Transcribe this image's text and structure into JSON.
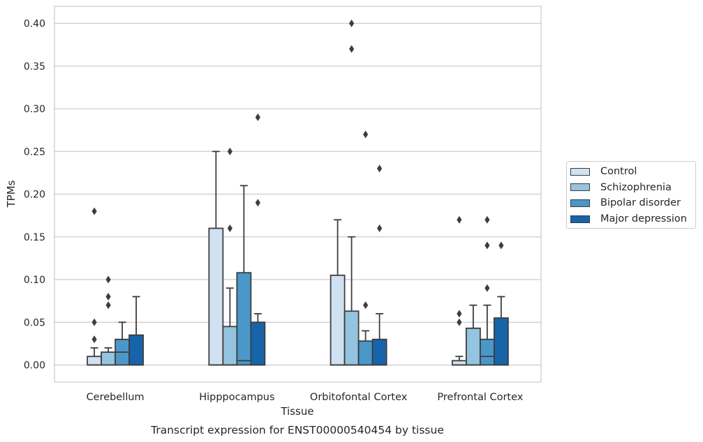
{
  "chart_data": {
    "type": "box",
    "title": "",
    "caption": "Transcript expression for ENST00000540454 by tissue",
    "xlabel": "Tissue",
    "ylabel": "TPMs",
    "ylim": [
      -0.02,
      0.42
    ],
    "yticks": [
      0.0,
      0.05,
      0.1,
      0.15,
      0.2,
      0.25,
      0.3,
      0.35,
      0.4
    ],
    "ytick_labels": [
      "0.00",
      "0.05",
      "0.10",
      "0.15",
      "0.20",
      "0.25",
      "0.30",
      "0.35",
      "0.40"
    ],
    "grid": true,
    "legend_position": "right",
    "categories": [
      "Cerebellum",
      "Hipppocampus",
      "Orbitofontal Cortex",
      "Prefrontal Cortex"
    ],
    "series": [
      {
        "name": "Control",
        "color": "#d0e1f2",
        "boxes": [
          {
            "q1": 0.0,
            "median": 0.0,
            "q3": 0.01,
            "whisker_low": 0.0,
            "whisker_high": 0.02,
            "outliers": [
              0.03,
              0.05,
              0.18
            ]
          },
          {
            "q1": 0.0,
            "median": 0.0,
            "q3": 0.16,
            "whisker_low": 0.0,
            "whisker_high": 0.25,
            "outliers": []
          },
          {
            "q1": 0.0,
            "median": 0.0,
            "q3": 0.105,
            "whisker_low": 0.0,
            "whisker_high": 0.17,
            "outliers": []
          },
          {
            "q1": 0.0,
            "median": 0.0,
            "q3": 0.005,
            "whisker_low": 0.0,
            "whisker_high": 0.01,
            "outliers": [
              0.05,
              0.06,
              0.17
            ]
          }
        ]
      },
      {
        "name": "Schizophrenia",
        "color": "#94c4df",
        "boxes": [
          {
            "q1": 0.0,
            "median": 0.0,
            "q3": 0.015,
            "whisker_low": 0.0,
            "whisker_high": 0.02,
            "outliers": [
              0.07,
              0.08,
              0.1
            ]
          },
          {
            "q1": 0.0,
            "median": 0.0,
            "q3": 0.045,
            "whisker_low": 0.0,
            "whisker_high": 0.09,
            "outliers": [
              0.16,
              0.25
            ]
          },
          {
            "q1": 0.0,
            "median": 0.0,
            "q3": 0.063,
            "whisker_low": 0.0,
            "whisker_high": 0.15,
            "outliers": [
              0.37,
              0.4
            ]
          },
          {
            "q1": 0.0,
            "median": 0.0,
            "q3": 0.043,
            "whisker_low": 0.0,
            "whisker_high": 0.07,
            "outliers": []
          }
        ]
      },
      {
        "name": "Bipolar disorder",
        "color": "#4a98c9",
        "boxes": [
          {
            "q1": 0.0,
            "median": 0.015,
            "q3": 0.03,
            "whisker_low": 0.0,
            "whisker_high": 0.05,
            "outliers": []
          },
          {
            "q1": 0.0,
            "median": 0.005,
            "q3": 0.108,
            "whisker_low": 0.0,
            "whisker_high": 0.21,
            "outliers": []
          },
          {
            "q1": 0.0,
            "median": 0.0,
            "q3": 0.028,
            "whisker_low": 0.0,
            "whisker_high": 0.04,
            "outliers": [
              0.07,
              0.27
            ]
          },
          {
            "q1": 0.0,
            "median": 0.01,
            "q3": 0.03,
            "whisker_low": 0.0,
            "whisker_high": 0.07,
            "outliers": [
              0.09,
              0.14,
              0.17
            ]
          }
        ]
      },
      {
        "name": "Major depression",
        "color": "#1764ab",
        "boxes": [
          {
            "q1": 0.0,
            "median": 0.0,
            "q3": 0.035,
            "whisker_low": 0.0,
            "whisker_high": 0.08,
            "outliers": []
          },
          {
            "q1": 0.0,
            "median": 0.0,
            "q3": 0.05,
            "whisker_low": 0.0,
            "whisker_high": 0.06,
            "outliers": [
              0.19,
              0.29
            ]
          },
          {
            "q1": 0.0,
            "median": 0.0,
            "q3": 0.03,
            "whisker_low": 0.0,
            "whisker_high": 0.06,
            "outliers": [
              0.16,
              0.23
            ]
          },
          {
            "q1": 0.0,
            "median": 0.0,
            "q3": 0.055,
            "whisker_low": 0.0,
            "whisker_high": 0.08,
            "outliers": [
              0.14
            ]
          }
        ]
      }
    ]
  }
}
